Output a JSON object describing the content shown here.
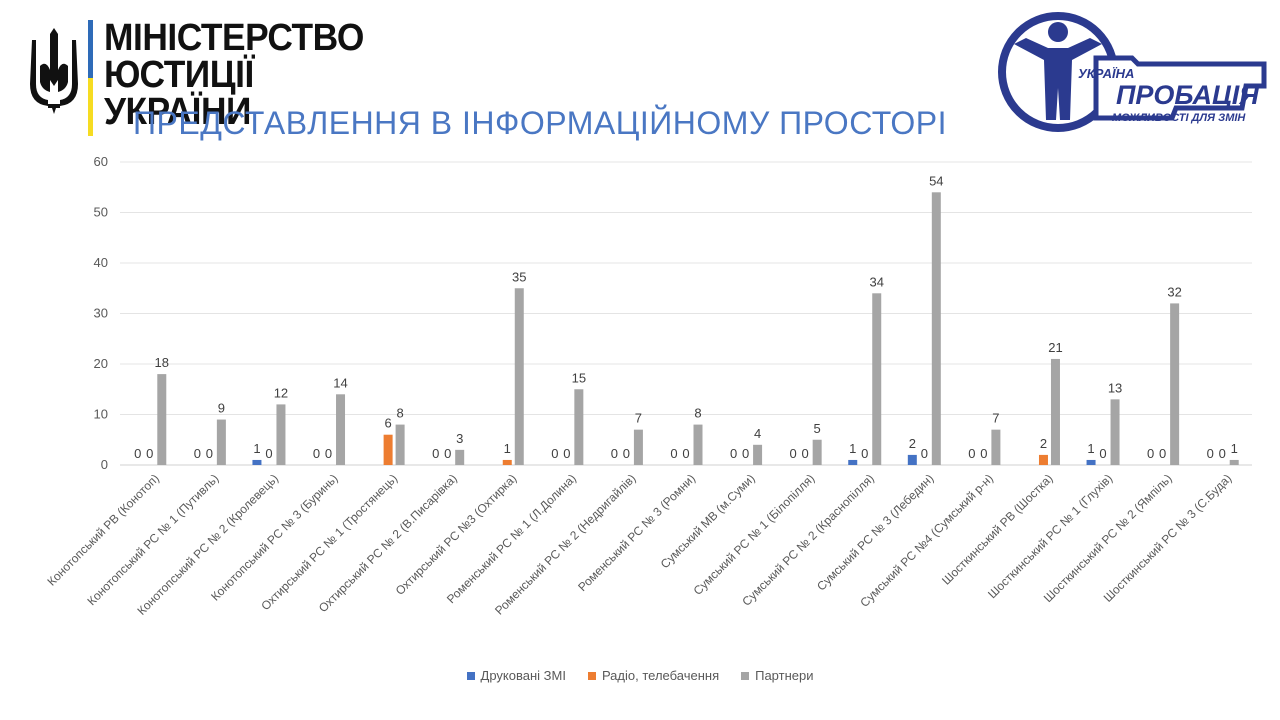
{
  "header": {
    "ministry_line1": "МІНІСТЕРСТВО",
    "ministry_line2": "ЮСТИЦІЇ УКРАЇНИ",
    "title": "ПРЕДСТАВЛЕННЯ В ІНФОРМАЦІЙНОМУ ПРОСТОРІ"
  },
  "probation_logo": {
    "word_country": "УКРАЇНА",
    "word_main": "ПРОБАЦІЯ",
    "tagline": "МОЖЛИВОСТІ ДЛЯ ЗМІН",
    "color": "#2b3a8f"
  },
  "colors": {
    "printed": "#4472c4",
    "radio": "#ed7d31",
    "partners": "#a5a5a5",
    "title": "#4a77c3",
    "flag_blue": "#2e6bb8",
    "flag_yellow": "#f6dc22"
  },
  "chart_data": {
    "type": "bar",
    "ylim": [
      0,
      60
    ],
    "yticks": [
      0,
      10,
      20,
      30,
      40,
      50,
      60
    ],
    "grid": true,
    "legend_position": "bottom",
    "categories": [
      "Конотопський РВ (Конотоп)",
      "Конотопський РС № 1 (Путивль)",
      "Конотопський РС № 2 (Кролевець)",
      "Конотопський РС № 3 (Буринь)",
      "Охтирський РС № 1 (Тростянець)",
      "Охтирський РС № 2 (В.Писарівка)",
      "Охтирський РС №3 (Охтирка)",
      "Роменський РС № 1 (Л.Долина)",
      "Роменський РС № 2 (Недригайлів)",
      "Роменський РС № 3 (Ромни)",
      "Сумський МВ (м.Суми)",
      "Сумський РС № 1 (Білопілля)",
      "Сумський РС № 2 (Краснопілля)",
      "Сумський РС № 3 (Лебедин)",
      "Сумський РС №4 (Сумський р-н)",
      "Шосткинський РВ (Шостка)",
      "Шосткинський РС № 1 (Глухів)",
      "Шосткинський РС № 2 (Ямпіль)",
      "Шосткинський РС № 3 (С.Буда)"
    ],
    "series": [
      {
        "name": "Друковані ЗМІ",
        "values": [
          0,
          0,
          1,
          0,
          null,
          0,
          0,
          0,
          0,
          0,
          0,
          0,
          1,
          2,
          0,
          null,
          1,
          0,
          0
        ]
      },
      {
        "name": "Радіо, телебачення",
        "values": [
          0,
          0,
          0,
          0,
          6,
          0,
          1,
          0,
          0,
          0,
          0,
          0,
          0,
          0,
          0,
          2,
          0,
          0,
          0
        ]
      },
      {
        "name": "Партнери",
        "values": [
          18,
          9,
          12,
          14,
          8,
          3,
          35,
          15,
          7,
          8,
          4,
          5,
          34,
          54,
          7,
          21,
          13,
          32,
          1
        ]
      }
    ],
    "labels": [
      [
        "0",
        "0",
        "1",
        "0",
        "",
        "0",
        "",
        "0",
        "0",
        "0",
        "0",
        "0",
        "1",
        "2",
        "0",
        "",
        "1",
        "0",
        "0"
      ],
      [
        "0",
        "0",
        "0",
        "0",
        "6",
        "0",
        "1",
        "0",
        "0",
        "0",
        "0",
        "0",
        "0",
        "0",
        "0",
        "2",
        "0",
        "0",
        "0"
      ],
      [
        "18",
        "9",
        "12",
        "14",
        "8",
        "3",
        "35",
        "15",
        "7",
        "8",
        "4",
        "5",
        "34",
        "54",
        "7",
        "21",
        "13",
        "32",
        "1"
      ]
    ],
    "printed_zero_label_mask": [
      [
        true,
        true,
        true,
        true,
        false,
        true,
        false,
        true,
        true,
        true,
        true,
        true,
        true,
        true,
        true,
        false,
        true,
        true,
        true
      ],
      [
        true,
        true,
        true,
        true,
        false,
        true,
        true,
        true,
        true,
        true,
        true,
        true,
        true,
        true,
        true,
        false,
        true,
        true,
        true
      ]
    ]
  }
}
